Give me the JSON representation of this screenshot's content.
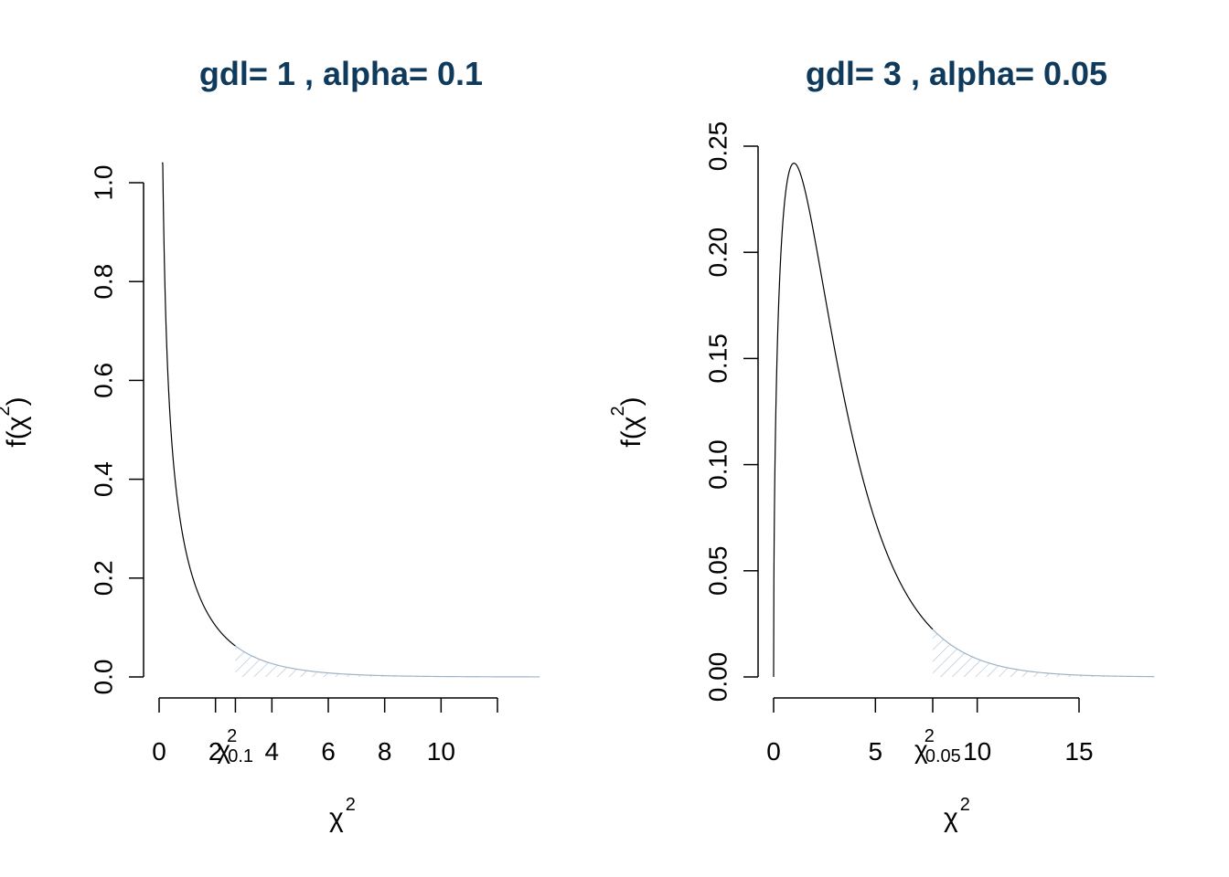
{
  "chart_data": [
    {
      "type": "line",
      "title": "gdl= 1 , alpha= 0.1",
      "df": 1,
      "alpha": 0.1,
      "critical_value": 2.706,
      "critical_label": {
        "base": "χ",
        "sup": "2",
        "sub": "0.1"
      },
      "xlabel": {
        "base": "χ",
        "sup": "2"
      },
      "ylabel": {
        "pre": "f(",
        "base": "χ",
        "sup": "2",
        "post": ")"
      },
      "xlim": [
        0,
        13.5
      ],
      "ylim": [
        0,
        1.04
      ],
      "x_ticks": [
        0,
        2,
        4,
        6,
        8,
        10,
        12
      ],
      "x_tick_labels": [
        "0",
        "2",
        "4",
        "6",
        "8",
        "10",
        ""
      ],
      "y_ticks": [
        0,
        0.2,
        0.4,
        0.6,
        0.8,
        1.0
      ],
      "y_tick_labels": [
        "0.0",
        "0.2",
        "0.4",
        "0.6",
        "0.8",
        "1.0"
      ],
      "shaded_region": "right-tail",
      "colors": {
        "title": "#0f3a5c",
        "curve": "#000000",
        "shade": "#a9bfd1",
        "tail_line": "#9db3c6"
      }
    },
    {
      "type": "line",
      "title": "gdl= 3 , alpha= 0.05",
      "df": 3,
      "alpha": 0.05,
      "critical_value": 7.815,
      "critical_label": {
        "base": "χ",
        "sup": "2",
        "sub": "0.05"
      },
      "xlabel": {
        "base": "χ",
        "sup": "2"
      },
      "ylabel": {
        "pre": "f(",
        "base": "χ",
        "sup": "2",
        "post": ")"
      },
      "xlim": [
        0,
        18.7
      ],
      "ylim": [
        0,
        0.25
      ],
      "x_ticks": [
        0,
        5,
        10,
        15
      ],
      "x_tick_labels": [
        "0",
        "5",
        "10",
        "15"
      ],
      "y_ticks": [
        0,
        0.05,
        0.1,
        0.15,
        0.2,
        0.25
      ],
      "y_tick_labels": [
        "0.00",
        "0.05",
        "0.10",
        "0.15",
        "0.20",
        "0.25"
      ],
      "shaded_region": "right-tail",
      "colors": {
        "title": "#0f3a5c",
        "curve": "#000000",
        "shade": "#a9bfd1",
        "tail_line": "#9db3c6"
      }
    }
  ]
}
